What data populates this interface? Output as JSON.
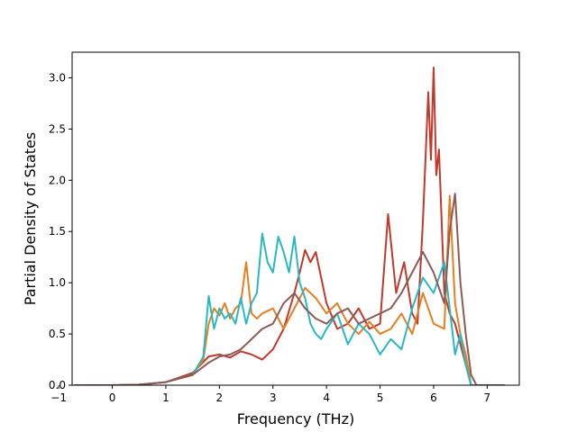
{
  "chart_data": {
    "type": "line",
    "xlabel": "Frequency (THz)",
    "ylabel": "Partial Density of States",
    "xlim": [
      -0.75,
      7.6
    ],
    "ylim": [
      0,
      3.25
    ],
    "xticks": [
      -1,
      0,
      1,
      2,
      3,
      4,
      5,
      6,
      7
    ],
    "yticks": [
      0.0,
      0.5,
      1.0,
      1.5,
      2.0,
      2.5,
      3.0
    ],
    "grid": false,
    "series": [
      {
        "color": "#c0392b",
        "x": [
          -0.7,
          0,
          0.5,
          1.0,
          1.5,
          1.8,
          2.0,
          2.2,
          2.4,
          2.6,
          2.8,
          3.0,
          3.2,
          3.4,
          3.5,
          3.6,
          3.7,
          3.8,
          3.9,
          4.0,
          4.2,
          4.4,
          4.6,
          4.8,
          5.0,
          5.15,
          5.3,
          5.45,
          5.6,
          5.7,
          5.8,
          5.9,
          5.95,
          6.0,
          6.05,
          6.1,
          6.15,
          6.2,
          6.3,
          6.4,
          6.5,
          6.6,
          6.7,
          6.8,
          7.32
        ],
        "values": [
          0,
          0,
          0.005,
          0.03,
          0.12,
          0.28,
          0.3,
          0.27,
          0.33,
          0.3,
          0.25,
          0.35,
          0.55,
          0.9,
          1.1,
          1.32,
          1.2,
          1.3,
          1.05,
          0.8,
          0.55,
          0.6,
          0.75,
          0.55,
          0.6,
          1.67,
          0.9,
          1.2,
          0.7,
          0.6,
          1.6,
          2.86,
          2.2,
          3.1,
          2.05,
          2.3,
          1.6,
          0.9,
          0.7,
          0.6,
          0.4,
          0.2,
          0,
          0,
          0
        ]
      },
      {
        "color": "#e67e22",
        "x": [
          -0.7,
          0,
          0.5,
          1.0,
          1.5,
          1.7,
          1.8,
          1.9,
          2.0,
          2.1,
          2.2,
          2.3,
          2.4,
          2.5,
          2.6,
          2.7,
          2.8,
          3.0,
          3.2,
          3.4,
          3.6,
          3.8,
          4.0,
          4.2,
          4.4,
          4.6,
          4.8,
          5.0,
          5.2,
          5.4,
          5.6,
          5.8,
          6.0,
          6.2,
          6.3,
          6.4,
          6.5,
          6.6,
          6.7,
          6.8,
          7.3
        ],
        "values": [
          0,
          0,
          0.005,
          0.03,
          0.1,
          0.25,
          0.6,
          0.75,
          0.68,
          0.8,
          0.65,
          0.75,
          0.8,
          1.2,
          0.7,
          0.65,
          0.7,
          0.75,
          0.55,
          0.75,
          0.95,
          0.85,
          0.7,
          0.8,
          0.6,
          0.5,
          0.62,
          0.5,
          0.55,
          0.7,
          0.5,
          0.9,
          0.6,
          0.55,
          1.85,
          0.8,
          0.5,
          0.3,
          0,
          0,
          0
        ]
      },
      {
        "color": "#2ab7c4",
        "x": [
          -0.7,
          0,
          0.5,
          1.0,
          1.5,
          1.7,
          1.8,
          1.9,
          2.0,
          2.1,
          2.2,
          2.3,
          2.4,
          2.5,
          2.6,
          2.7,
          2.8,
          2.9,
          3.0,
          3.1,
          3.2,
          3.3,
          3.4,
          3.5,
          3.6,
          3.7,
          3.8,
          3.9,
          4.0,
          4.2,
          4.4,
          4.6,
          4.8,
          5.0,
          5.2,
          5.4,
          5.6,
          5.8,
          6.0,
          6.2,
          6.4,
          6.5,
          6.6,
          6.7,
          6.8,
          7.3
        ],
        "values": [
          0,
          0,
          0.005,
          0.03,
          0.1,
          0.28,
          0.87,
          0.55,
          0.75,
          0.65,
          0.7,
          0.6,
          0.85,
          0.6,
          0.8,
          0.9,
          1.48,
          1.2,
          1.1,
          1.45,
          1.3,
          1.1,
          1.45,
          1.0,
          0.85,
          0.6,
          0.5,
          0.45,
          0.55,
          0.7,
          0.4,
          0.6,
          0.5,
          0.3,
          0.45,
          0.35,
          0.75,
          1.05,
          0.9,
          1.2,
          0.3,
          0.5,
          0.2,
          0,
          0,
          0
        ]
      },
      {
        "color": "#8e5a55",
        "x": [
          -0.7,
          0,
          0.5,
          1.0,
          1.5,
          1.8,
          2.0,
          2.2,
          2.4,
          2.6,
          2.8,
          3.0,
          3.2,
          3.4,
          3.6,
          3.8,
          4.0,
          4.2,
          4.4,
          4.6,
          4.8,
          5.0,
          5.2,
          5.4,
          5.6,
          5.8,
          6.0,
          6.2,
          6.3,
          6.4,
          6.5,
          6.6,
          6.7,
          6.8,
          7.3
        ],
        "values": [
          0,
          0,
          0.005,
          0.03,
          0.1,
          0.22,
          0.28,
          0.3,
          0.35,
          0.45,
          0.55,
          0.6,
          0.8,
          0.9,
          0.75,
          0.65,
          0.6,
          0.7,
          0.75,
          0.6,
          0.65,
          0.7,
          0.75,
          0.9,
          1.1,
          1.3,
          1.1,
          0.8,
          1.5,
          1.87,
          1.0,
          0.5,
          0.1,
          0,
          0
        ]
      }
    ]
  }
}
